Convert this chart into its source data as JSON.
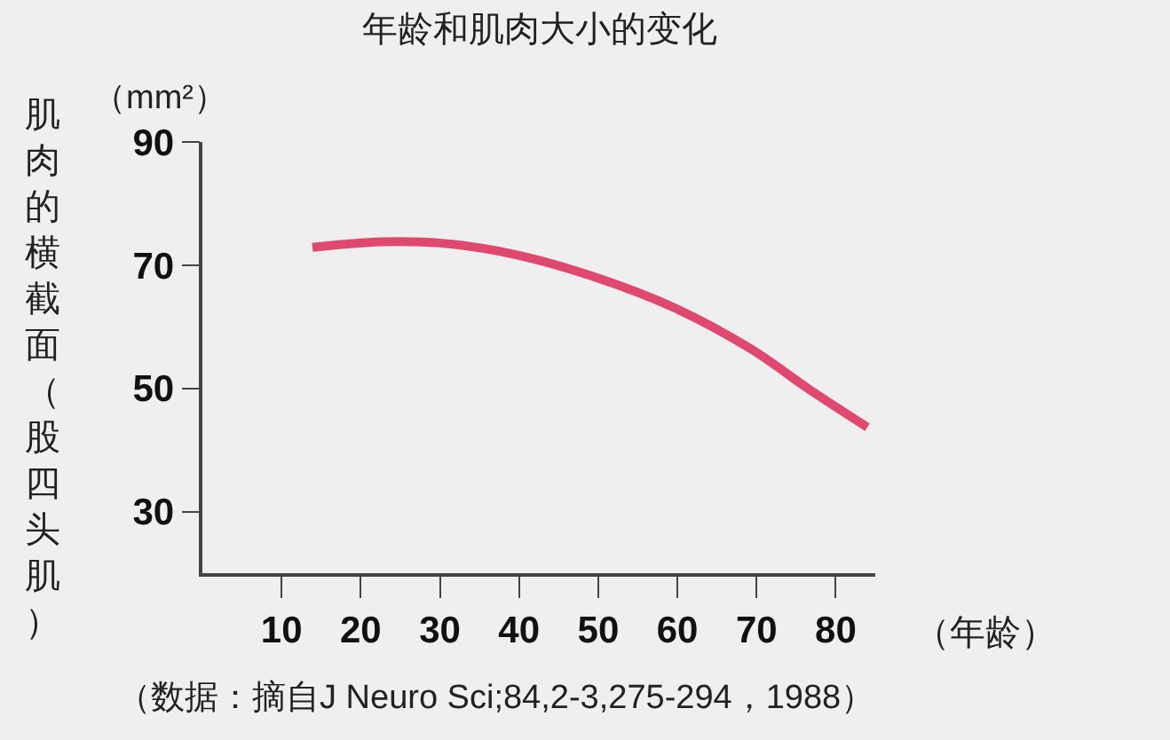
{
  "chart_data": {
    "type": "line",
    "title": "年龄和肌肉大小的变化",
    "xlabel": "（年龄）",
    "ylabel": "肌肉的横截面（股四头肌）",
    "annotations": [
      "（mm²）",
      "（数据：摘自J Neuro Sci;84,2-3,275-294，1988）"
    ],
    "series": [
      {
        "color": "#e0496f",
        "x": [
          13.9,
          22.6,
          30,
          39.6,
          50,
          59.6,
          69.3,
          76.7,
          84
        ],
        "values": [
          72.9,
          73.8,
          73.6,
          71.7,
          67.9,
          63.1,
          56.4,
          49.8,
          43.7
        ]
      }
    ],
    "xlim": [
      0,
      85
    ],
    "xticks": [
      10,
      20,
      30,
      40,
      50,
      60,
      70,
      80
    ],
    "ylim": [
      20,
      90
    ],
    "yticks": [
      30,
      50,
      70,
      90
    ],
    "grid": false,
    "marker": "none",
    "line_style": "solid"
  }
}
